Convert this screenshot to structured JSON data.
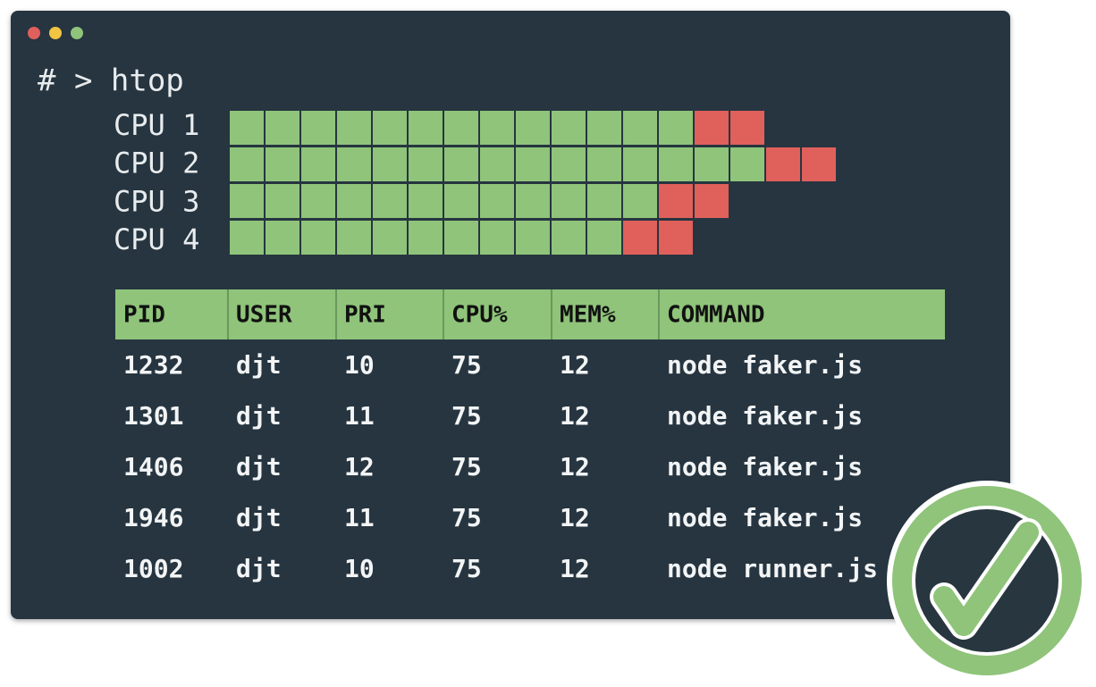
{
  "prompt": "# > htop",
  "cpus": [
    {
      "label": "CPU 1",
      "normal_blocks": 13,
      "high_blocks": 2
    },
    {
      "label": "CPU 2",
      "normal_blocks": 15,
      "high_blocks": 2
    },
    {
      "label": "CPU 3",
      "normal_blocks": 12,
      "high_blocks": 2
    },
    {
      "label": "CPU 4",
      "normal_blocks": 11,
      "high_blocks": 2
    }
  ],
  "table": {
    "header": [
      "PID",
      "USER",
      "PRI",
      "CPU%",
      "MEM%",
      "COMMAND"
    ],
    "rows": [
      [
        "1232",
        "djt",
        "10",
        "75",
        "12",
        "node faker.js"
      ],
      [
        "1301",
        "djt",
        "11",
        "75",
        "12",
        "node faker.js"
      ],
      [
        "1406",
        "djt",
        "12",
        "75",
        "12",
        "node faker.js"
      ],
      [
        "1946",
        "djt",
        "11",
        "75",
        "12",
        "node faker.js"
      ],
      [
        "1002",
        "djt",
        "10",
        "75",
        "12",
        "node runner.js"
      ]
    ]
  }
}
